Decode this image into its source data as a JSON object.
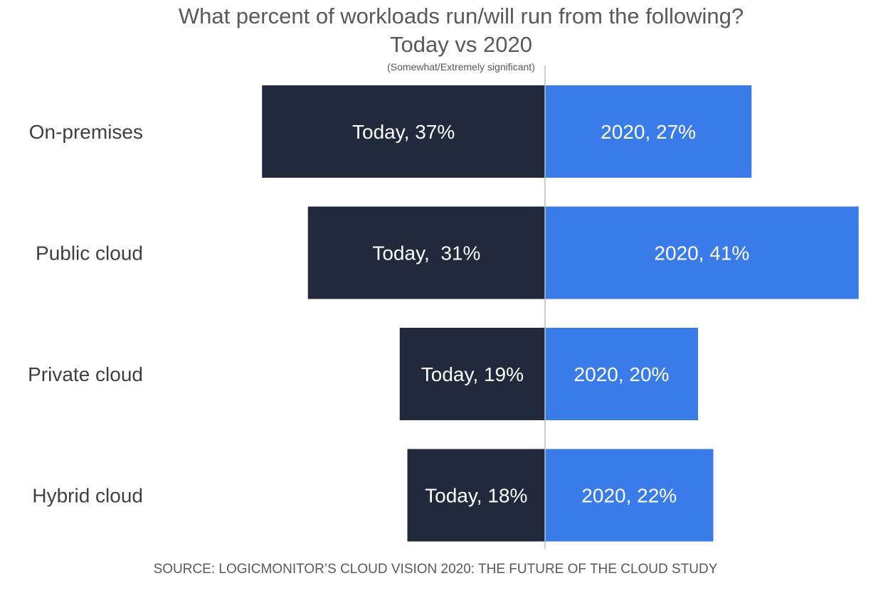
{
  "chart_data": {
    "type": "bar",
    "orientation": "horizontal-diverging",
    "title": "What percent of workloads run/will run from the following?",
    "subtitle": "Today vs 2020",
    "note": "(Somewhat/Extremely significant)",
    "source": "SOURCE: LOGICMONITOR’S CLOUD VISION 2020: THE FUTURE OF THE CLOUD STUDY",
    "categories": [
      "On-premises",
      "Public cloud",
      "Private cloud",
      "Hybrid cloud"
    ],
    "series": [
      {
        "name": "Today",
        "color": "#21293d",
        "values": [
          37,
          31,
          19,
          18
        ],
        "labels": [
          "Today, 37%",
          "Today,  31%",
          "Today, 19%",
          "Today, 18%"
        ]
      },
      {
        "name": "2020",
        "color": "#3a7bea",
        "values": [
          27,
          41,
          20,
          22
        ],
        "labels": [
          "2020, 27%",
          "2020, 41%",
          "2020, 20%",
          "2020, 22%"
        ]
      }
    ],
    "axis_line_color": "#bfbfbf"
  }
}
